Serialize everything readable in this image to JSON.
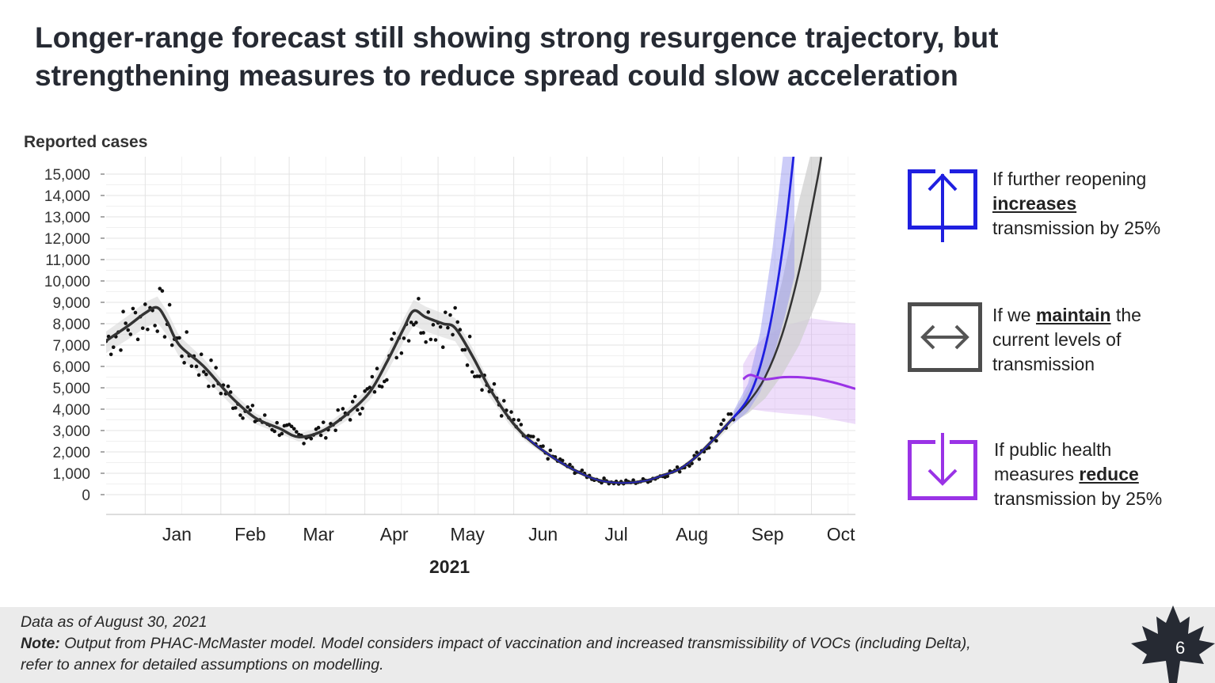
{
  "title": {
    "line1": "Longer-range forecast still showing strong resurgence trajectory, but",
    "line2": "strengthening measures to reduce spread could slow acceleration"
  },
  "chart_data": {
    "type": "line",
    "title": "",
    "ylabel": "Reported cases",
    "xlabel": "2021",
    "ylim": [
      0,
      15000
    ],
    "yticks": [
      "15,000",
      "14,000",
      "13,000",
      "12,000",
      "11,000",
      "10,000",
      "9,000",
      "8,000",
      "7,000",
      "6,000",
      "5,000",
      "4,000",
      "3,000",
      "2,000",
      "1,000",
      "0"
    ],
    "ytick_values": [
      15000,
      14000,
      13000,
      12000,
      11000,
      10000,
      9000,
      8000,
      7000,
      6000,
      5000,
      4000,
      3000,
      2000,
      1000,
      0
    ],
    "xticks": [
      "Jan",
      "Feb",
      "Mar",
      "Apr",
      "May",
      "Jun",
      "Jul",
      "Aug",
      "Sep",
      "Oct"
    ],
    "x_range": [
      "2020-12-16",
      "2021-10-19"
    ],
    "grid": true,
    "observed_points_note": "daily reported cases (dots), Dec 2020 – Aug 30 2021",
    "series": [
      {
        "name": "Observed (smoothed)",
        "color": "#333333",
        "points": [
          [
            "2020-12-16",
            7200
          ],
          [
            "2020-12-25",
            7900
          ],
          [
            "2021-01-01",
            8500
          ],
          [
            "2021-01-06",
            8750
          ],
          [
            "2021-01-10",
            8100
          ],
          [
            "2021-01-15",
            7000
          ],
          [
            "2021-01-25",
            6000
          ],
          [
            "2021-02-05",
            4600
          ],
          [
            "2021-02-15",
            3600
          ],
          [
            "2021-02-25",
            3100
          ],
          [
            "2021-03-05",
            2700
          ],
          [
            "2021-03-15",
            3000
          ],
          [
            "2021-03-25",
            3800
          ],
          [
            "2021-04-03",
            4800
          ],
          [
            "2021-04-10",
            6200
          ],
          [
            "2021-04-17",
            7800
          ],
          [
            "2021-04-21",
            8600
          ],
          [
            "2021-04-26",
            8300
          ],
          [
            "2021-05-03",
            8000
          ],
          [
            "2021-05-08",
            7800
          ],
          [
            "2021-05-15",
            6500
          ],
          [
            "2021-05-22",
            5000
          ],
          [
            "2021-05-30",
            3600
          ],
          [
            "2021-06-06",
            2700
          ],
          [
            "2021-06-15",
            1900
          ],
          [
            "2021-06-25",
            1200
          ],
          [
            "2021-07-05",
            700
          ],
          [
            "2021-07-15",
            550
          ],
          [
            "2021-07-25",
            650
          ],
          [
            "2021-08-01",
            900
          ],
          [
            "2021-08-08",
            1200
          ],
          [
            "2021-08-15",
            1800
          ],
          [
            "2021-08-22",
            2600
          ],
          [
            "2021-08-30",
            3600
          ]
        ]
      },
      {
        "name": "maintain the current levels of transmission",
        "color": "#333333",
        "points": [
          [
            "2021-08-30",
            3600
          ],
          [
            "2021-09-05",
            4300
          ],
          [
            "2021-09-12",
            5500
          ],
          [
            "2021-09-19",
            7500
          ],
          [
            "2021-09-26",
            10500
          ],
          [
            "2021-10-03",
            14500
          ],
          [
            "2021-10-05",
            15800
          ]
        ],
        "band": [
          [
            3400,
            3800
          ],
          [
            3800,
            4900
          ],
          [
            4500,
            6800
          ],
          [
            5600,
            10000
          ],
          [
            7000,
            13800
          ],
          [
            9000,
            17000
          ],
          [
            9600,
            17500
          ]
        ]
      },
      {
        "name": "further reopening increases transmission by 25%",
        "color": "#1f1fe0",
        "points": [
          [
            "2021-08-30",
            3600
          ],
          [
            "2021-09-05",
            4500
          ],
          [
            "2021-09-10",
            6000
          ],
          [
            "2021-09-15",
            8500
          ],
          [
            "2021-09-20",
            12200
          ],
          [
            "2021-09-24",
            16200
          ]
        ],
        "band": [
          [
            3300,
            3900
          ],
          [
            3900,
            5200
          ],
          [
            4800,
            7600
          ],
          [
            6300,
            11500
          ],
          [
            8300,
            16500
          ],
          [
            10200,
            17500
          ]
        ]
      },
      {
        "name": "public health measures reduce transmission by 25%",
        "color": "#9a33e6",
        "points": [
          [
            "2021-09-03",
            5400
          ],
          [
            "2021-09-06",
            5600
          ],
          [
            "2021-09-12",
            5400
          ],
          [
            "2021-09-20",
            5500
          ],
          [
            "2021-10-01",
            5450
          ],
          [
            "2021-10-10",
            5250
          ],
          [
            "2021-10-19",
            4950
          ]
        ],
        "band": [
          [
            4200,
            6100
          ],
          [
            4000,
            6700
          ],
          [
            3900,
            7400
          ],
          [
            3800,
            7900
          ],
          [
            3700,
            8250
          ],
          [
            3500,
            8100
          ],
          [
            3300,
            8000
          ]
        ]
      }
    ]
  },
  "legend": [
    {
      "icon": "arrow-up-icon",
      "color": "#1f1fe0",
      "lines": [
        {
          "pre": "If further reopening",
          "bold": "",
          "post": ""
        },
        {
          "pre": "",
          "bold": "increases",
          "post": ""
        },
        {
          "pre": "transmission by 25%",
          "bold": "",
          "post": ""
        }
      ]
    },
    {
      "icon": "arrow-horizontal-icon",
      "color": "#4d4d4d",
      "lines": [
        {
          "pre": "If we ",
          "bold": "maintain",
          "post": " the"
        },
        {
          "pre": "current levels of",
          "bold": "",
          "post": ""
        },
        {
          "pre": "transmission",
          "bold": "",
          "post": ""
        }
      ]
    },
    {
      "icon": "arrow-down-icon",
      "color": "#9a33e6",
      "lines": [
        {
          "pre": "If public health",
          "bold": "",
          "post": ""
        },
        {
          "pre": "measures ",
          "bold": "reduce",
          "post": ""
        },
        {
          "pre": "transmission by 25%",
          "bold": "",
          "post": ""
        }
      ]
    }
  ],
  "footer": {
    "date_line": "Data as of August 30, 2021",
    "note_label": "Note:",
    "note_text": " Output from PHAC-McMaster model. Model considers impact of vaccination and increased transmissibility of VOCs (including Delta),",
    "note_line2": "refer to annex for detailed assumptions on modelling.",
    "page_number": "6"
  }
}
